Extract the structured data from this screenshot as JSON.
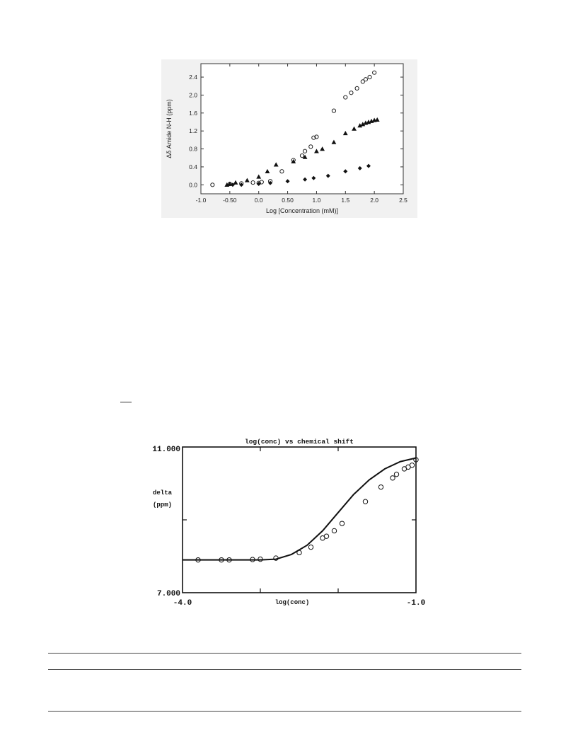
{
  "chart_data": [
    {
      "type": "scatter",
      "title": "",
      "xlabel": "Log [Concentration (mM)]",
      "ylabel": "Δδ Amide N-H (ppm)",
      "xlim": [
        -1.0,
        2.5
      ],
      "ylim": [
        -0.2,
        2.7
      ],
      "x_ticks": [
        -1.0,
        -0.5,
        0.0,
        0.5,
        1.0,
        1.5,
        2.0,
        2.5
      ],
      "x_tick_labels": [
        "-1.0",
        "-0.50",
        "0.0",
        "0.50",
        "1.0",
        "1.5",
        "2.0",
        "2.5"
      ],
      "y_ticks": [
        0.0,
        0.4,
        0.8,
        1.2,
        1.6,
        2.0,
        2.4
      ],
      "y_tick_labels": [
        "0.0",
        "0.4",
        "0.8",
        "1.2",
        "1.6",
        "2.0",
        "2.4"
      ],
      "grid": false,
      "legend": "none",
      "series": [
        {
          "marker": "open-circle",
          "x": [
            -0.8,
            -0.5,
            -0.3,
            -0.1,
            0.0,
            0.05,
            0.2,
            0.4,
            0.6,
            0.75,
            0.8,
            0.9,
            0.95,
            1.0,
            1.3,
            1.5,
            1.6,
            1.7,
            1.8,
            1.85,
            1.92,
            2.0
          ],
          "y": [
            0.0,
            0.02,
            0.03,
            0.05,
            0.04,
            0.06,
            0.08,
            0.3,
            0.55,
            0.65,
            0.75,
            0.85,
            1.05,
            1.07,
            1.65,
            1.95,
            2.05,
            2.15,
            2.3,
            2.35,
            2.4,
            2.5
          ]
        },
        {
          "marker": "filled-triangle",
          "x": [
            -0.55,
            -0.5,
            -0.4,
            -0.2,
            0.0,
            0.15,
            0.3,
            0.6,
            0.8,
            1.0,
            1.1,
            1.3,
            1.5,
            1.65,
            1.75,
            1.8,
            1.85,
            1.9,
            1.95,
            2.0,
            2.05
          ],
          "y": [
            0.0,
            0.02,
            0.05,
            0.1,
            0.18,
            0.3,
            0.45,
            0.52,
            0.62,
            0.75,
            0.8,
            0.95,
            1.15,
            1.25,
            1.32,
            1.35,
            1.38,
            1.4,
            1.42,
            1.44,
            1.45
          ]
        },
        {
          "marker": "filled-diamond",
          "x": [
            -0.45,
            -0.3,
            0.0,
            0.2,
            0.5,
            0.8,
            0.95,
            1.2,
            1.5,
            1.75,
            1.9
          ],
          "y": [
            0.0,
            0.0,
            0.02,
            0.04,
            0.08,
            0.12,
            0.15,
            0.2,
            0.3,
            0.37,
            0.42
          ]
        }
      ]
    },
    {
      "type": "line",
      "title": "log(conc) vs chemical shift",
      "xlabel": "log(conc)",
      "ylabel": "delta (ppm)",
      "xlim": [
        -4.0,
        -1.0
      ],
      "ylim": [
        7.0,
        11.0
      ],
      "x_tick_labels": [
        "-4.0",
        "-1.0"
      ],
      "y_tick_labels": [
        "11.000",
        "7.000"
      ],
      "grid": false,
      "legend": "none",
      "fit_curve": {
        "x": [
          -4.0,
          -3.5,
          -3.0,
          -2.8,
          -2.6,
          -2.4,
          -2.2,
          -2.0,
          -1.8,
          -1.6,
          -1.4,
          -1.2,
          -1.0
        ],
        "y": [
          7.9,
          7.9,
          7.9,
          7.92,
          8.05,
          8.3,
          8.7,
          9.2,
          9.7,
          10.1,
          10.4,
          10.6,
          10.7
        ]
      },
      "series": [
        {
          "marker": "open-circle",
          "x": [
            -3.8,
            -3.5,
            -3.4,
            -3.1,
            -3.0,
            -2.8,
            -2.5,
            -2.35,
            -2.2,
            -2.15,
            -2.05,
            -1.95,
            -1.65,
            -1.45,
            -1.3,
            -1.25,
            -1.15,
            -1.1,
            -1.05,
            -1.0
          ],
          "y": [
            7.9,
            7.9,
            7.9,
            7.91,
            7.92,
            7.95,
            8.1,
            8.25,
            8.5,
            8.55,
            8.7,
            8.9,
            9.5,
            9.9,
            10.15,
            10.25,
            10.4,
            10.45,
            10.5,
            10.65
          ]
        }
      ]
    }
  ]
}
